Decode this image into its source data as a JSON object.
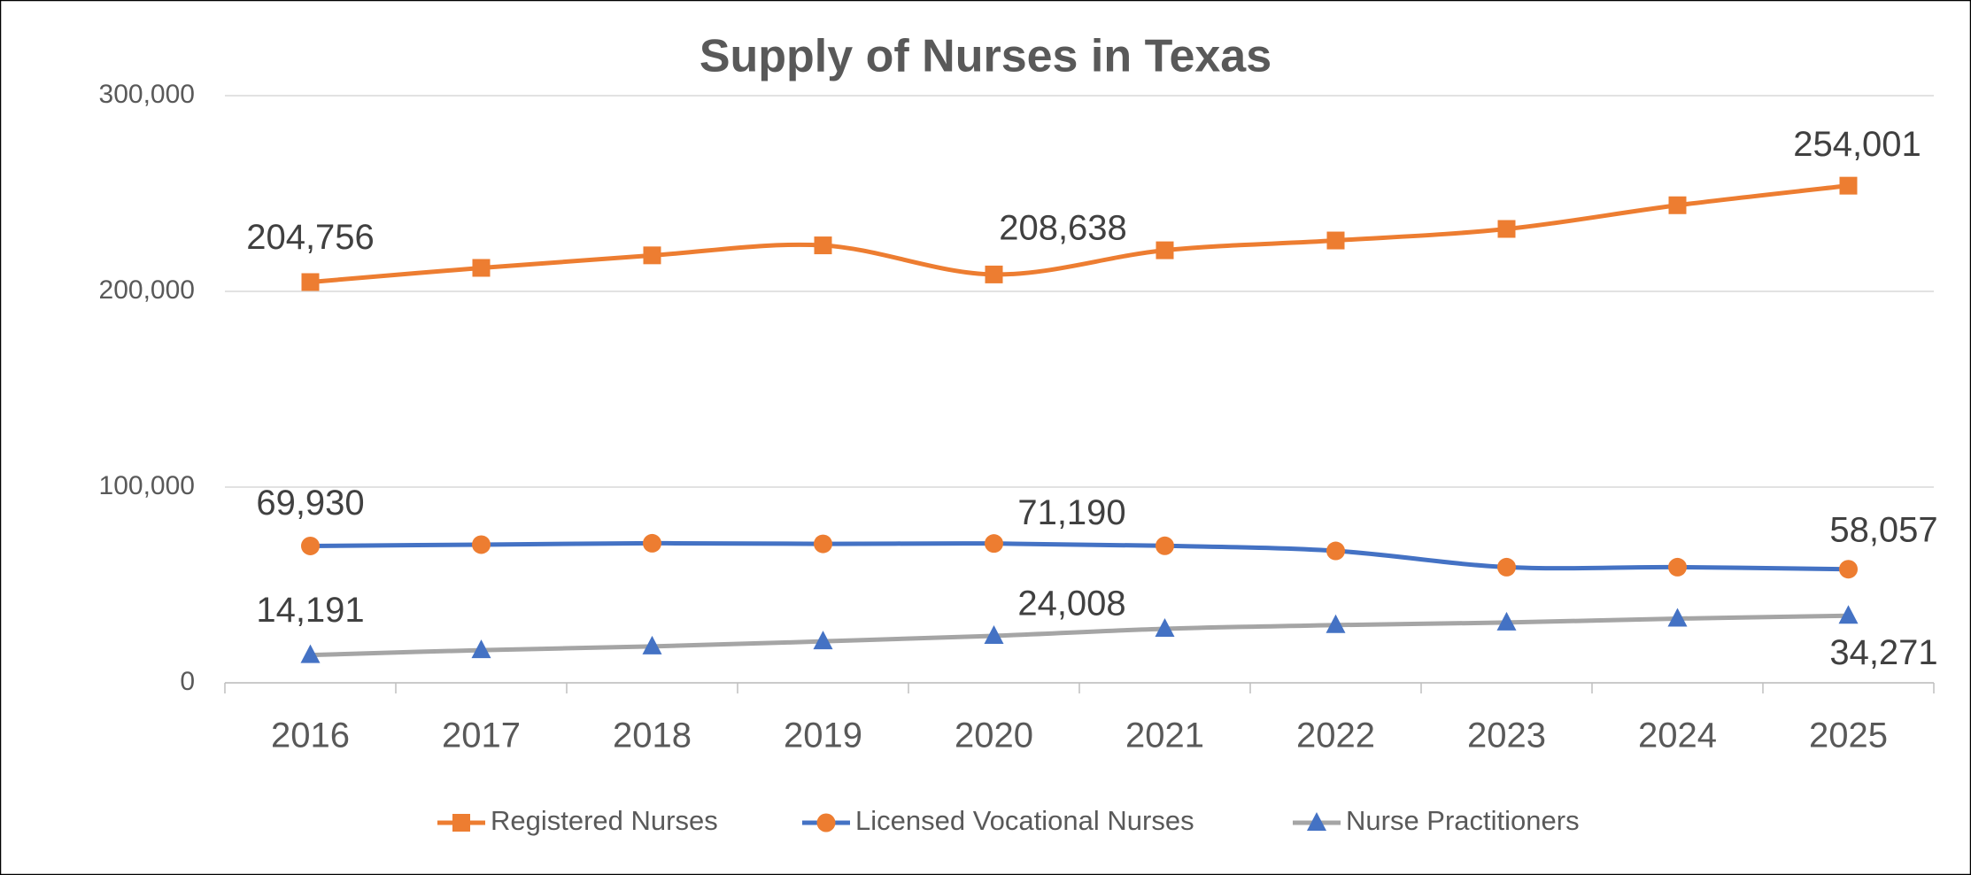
{
  "chart_data": {
    "type": "line",
    "title": "Supply of Nurses in Texas",
    "categories": [
      "2016",
      "2017",
      "2018",
      "2019",
      "2020",
      "2021",
      "2022",
      "2023",
      "2024",
      "2025"
    ],
    "series": [
      {
        "name": "Registered Nurses",
        "color": "#ed7d31",
        "marker": "square",
        "marker_color": "#ed7d31",
        "values": [
          204756,
          212000,
          218400,
          223500,
          208638,
          221000,
          226000,
          231900,
          244000,
          254001
        ],
        "value_labels": [
          "204,756",
          null,
          null,
          null,
          "208,638",
          null,
          null,
          null,
          null,
          "254,001"
        ]
      },
      {
        "name": "Licensed Vocational Nurses",
        "color": "#4472c4",
        "marker": "circle",
        "marker_color": "#ed7d31",
        "values": [
          69930,
          70600,
          71300,
          71000,
          71190,
          70000,
          67400,
          59100,
          59100,
          58057
        ],
        "value_labels": [
          "69,930",
          null,
          null,
          null,
          "71,190",
          null,
          null,
          null,
          null,
          "58,057"
        ]
      },
      {
        "name": "Nurse Practitioners",
        "color": "#a5a5a5",
        "marker": "triangle",
        "marker_color": "#4472c4",
        "values": [
          14191,
          16700,
          18600,
          21200,
          24008,
          27600,
          29500,
          30800,
          32800,
          34271
        ],
        "value_labels": [
          "14,191",
          null,
          null,
          null,
          "24,008",
          null,
          null,
          null,
          null,
          "34,271"
        ]
      }
    ],
    "ylim": [
      0,
      300000
    ],
    "yticks": [
      0,
      {
        "value": 100000,
        "label": "100,000"
      },
      {
        "value": 200000,
        "label": "200,000"
      },
      {
        "value": 300000,
        "label": "300,000"
      }
    ],
    "grid": true,
    "smooth": true,
    "legend": "bottom"
  }
}
